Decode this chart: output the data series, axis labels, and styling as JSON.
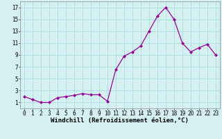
{
  "x_data": [
    0,
    1,
    2,
    3,
    4,
    5,
    6,
    7,
    8,
    9,
    10,
    11,
    12,
    13,
    14,
    15,
    16,
    17,
    18,
    19,
    20,
    21,
    22,
    23
  ],
  "y_data": [
    2.0,
    1.5,
    1.0,
    1.0,
    1.8,
    2.0,
    2.2,
    2.5,
    2.3,
    2.3,
    1.2,
    6.5,
    8.8,
    9.5,
    10.5,
    13.0,
    15.5,
    17.0,
    15.0,
    11.0,
    9.5,
    10.2,
    10.8,
    9.0
  ],
  "line_color": "#990099",
  "marker": "D",
  "marker_size": 2.0,
  "bg_color": "#d4f0f0",
  "grid_color": "#aadddd",
  "xlabel": "Windchill (Refroidissement éolien,°C)",
  "xlim": [
    -0.5,
    23.5
  ],
  "ylim": [
    0,
    18
  ],
  "yticks": [
    1,
    3,
    5,
    7,
    9,
    11,
    13,
    15,
    17
  ],
  "xticks": [
    0,
    1,
    2,
    3,
    4,
    5,
    6,
    7,
    8,
    9,
    10,
    11,
    12,
    13,
    14,
    15,
    16,
    17,
    18,
    19,
    20,
    21,
    22,
    23
  ],
  "label_fontsize": 6.5,
  "tick_fontsize": 5.5,
  "fig_width": 3.2,
  "fig_height": 2.0,
  "dpi": 100
}
